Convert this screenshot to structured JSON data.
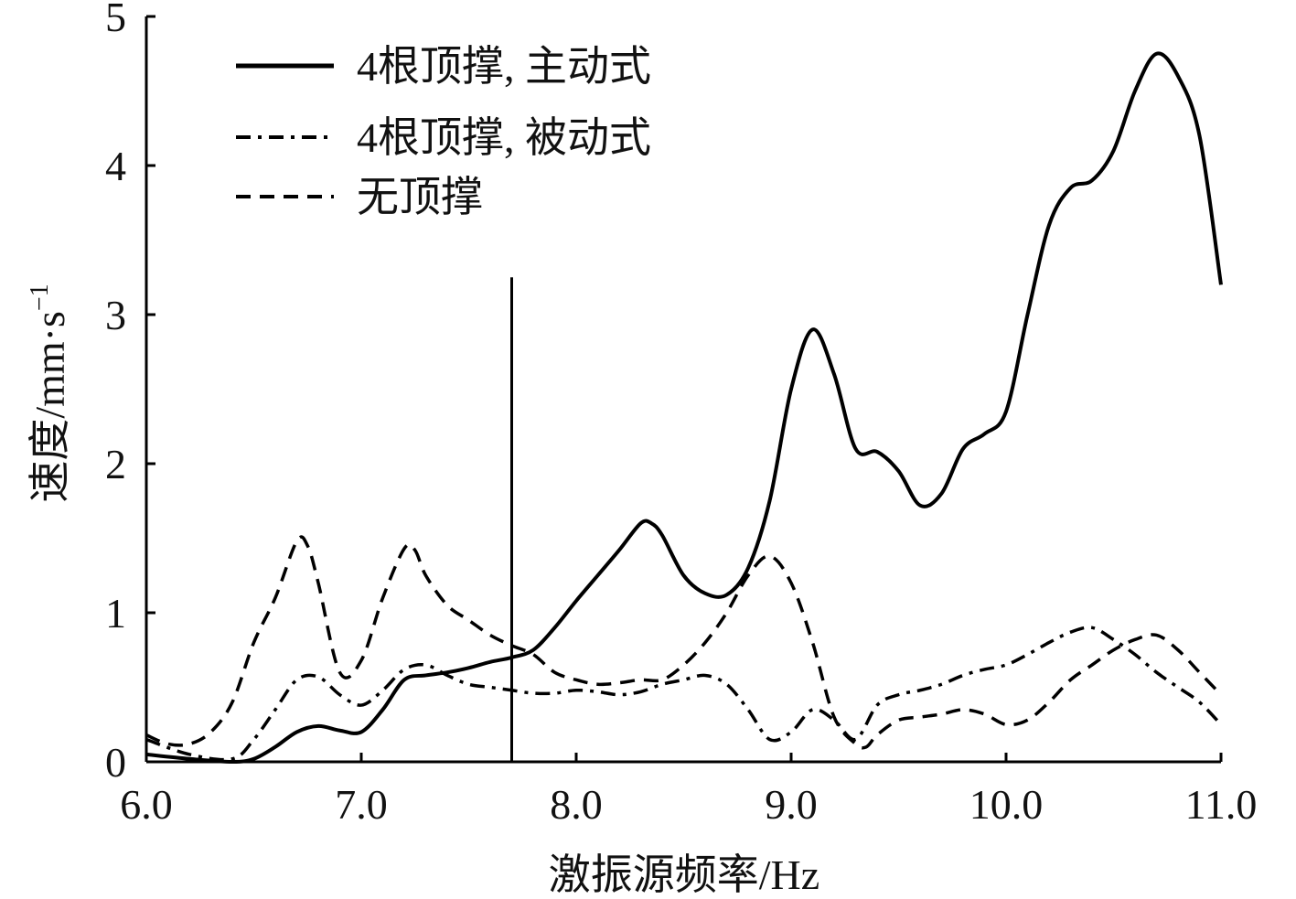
{
  "chart_data": {
    "type": "line",
    "title": "",
    "xlabel": "激振源频率/Hz",
    "ylabel": "速度/mm·s",
    "ylabel_superscript": "−1",
    "xlim": [
      6.0,
      11.0
    ],
    "ylim": [
      0,
      5
    ],
    "xticks": [
      "6.0",
      "7.0",
      "8.0",
      "9.0",
      "10.0",
      "11.0"
    ],
    "yticks": [
      "0",
      "1",
      "2",
      "3",
      "4",
      "5"
    ],
    "grid": false,
    "legend_position": "top-left",
    "marker_line": {
      "x": 7.7,
      "y_top": 3.25
    },
    "series": [
      {
        "name": "4根顶撑, 主动式",
        "style": "solid",
        "x": [
          6.0,
          6.2,
          6.4,
          6.5,
          6.6,
          6.7,
          6.8,
          6.9,
          7.0,
          7.1,
          7.2,
          7.3,
          7.4,
          7.5,
          7.6,
          7.7,
          7.8,
          7.9,
          8.0,
          8.1,
          8.2,
          8.3,
          8.35,
          8.4,
          8.5,
          8.6,
          8.7,
          8.8,
          8.9,
          9.0,
          9.1,
          9.2,
          9.3,
          9.4,
          9.5,
          9.6,
          9.7,
          9.8,
          9.9,
          10.0,
          10.1,
          10.2,
          10.3,
          10.4,
          10.5,
          10.6,
          10.7,
          10.8,
          10.9,
          11.0
        ],
        "y": [
          0.05,
          0.02,
          0.0,
          0.02,
          0.1,
          0.2,
          0.24,
          0.21,
          0.2,
          0.35,
          0.55,
          0.58,
          0.6,
          0.63,
          0.67,
          0.7,
          0.75,
          0.9,
          1.08,
          1.25,
          1.42,
          1.6,
          1.6,
          1.52,
          1.25,
          1.13,
          1.12,
          1.3,
          1.75,
          2.5,
          2.9,
          2.6,
          2.1,
          2.08,
          1.95,
          1.72,
          1.8,
          2.1,
          2.2,
          2.35,
          3.0,
          3.6,
          3.85,
          3.9,
          4.1,
          4.5,
          4.75,
          4.6,
          4.2,
          3.2
        ]
      },
      {
        "name": "4根顶撑, 被动式",
        "style": "dashdot",
        "x": [
          6.0,
          6.2,
          6.4,
          6.5,
          6.6,
          6.7,
          6.8,
          6.9,
          7.0,
          7.1,
          7.2,
          7.3,
          7.4,
          7.5,
          7.6,
          7.7,
          7.8,
          7.9,
          8.0,
          8.1,
          8.2,
          8.3,
          8.4,
          8.5,
          8.6,
          8.7,
          8.8,
          8.9,
          9.0,
          9.1,
          9.2,
          9.3,
          9.4,
          9.5,
          9.6,
          9.7,
          9.8,
          9.9,
          10.0,
          10.1,
          10.2,
          10.3,
          10.4,
          10.5,
          10.6,
          10.7,
          10.8,
          10.9,
          11.0
        ],
        "y": [
          0.15,
          0.05,
          0.02,
          0.15,
          0.35,
          0.55,
          0.57,
          0.45,
          0.38,
          0.48,
          0.62,
          0.65,
          0.58,
          0.52,
          0.5,
          0.48,
          0.46,
          0.46,
          0.48,
          0.47,
          0.45,
          0.47,
          0.52,
          0.55,
          0.58,
          0.52,
          0.35,
          0.15,
          0.2,
          0.35,
          0.28,
          0.15,
          0.38,
          0.45,
          0.48,
          0.52,
          0.58,
          0.62,
          0.65,
          0.72,
          0.8,
          0.87,
          0.9,
          0.82,
          0.72,
          0.6,
          0.5,
          0.4,
          0.25
        ]
      },
      {
        "name": "无顶撑",
        "style": "dashed",
        "x": [
          6.0,
          6.1,
          6.2,
          6.3,
          6.4,
          6.5,
          6.6,
          6.7,
          6.75,
          6.8,
          6.9,
          7.0,
          7.1,
          7.2,
          7.25,
          7.3,
          7.4,
          7.5,
          7.6,
          7.7,
          7.8,
          7.9,
          8.0,
          8.1,
          8.2,
          8.3,
          8.4,
          8.5,
          8.6,
          8.7,
          8.8,
          8.9,
          9.0,
          9.1,
          9.2,
          9.3,
          9.35,
          9.4,
          9.5,
          9.6,
          9.7,
          9.8,
          9.9,
          10.0,
          10.1,
          10.2,
          10.3,
          10.4,
          10.5,
          10.6,
          10.7,
          10.8,
          10.9,
          11.0
        ],
        "y": [
          0.18,
          0.12,
          0.12,
          0.2,
          0.4,
          0.8,
          1.1,
          1.48,
          1.45,
          1.2,
          0.6,
          0.68,
          1.1,
          1.43,
          1.42,
          1.25,
          1.05,
          0.95,
          0.85,
          0.78,
          0.72,
          0.6,
          0.55,
          0.52,
          0.53,
          0.55,
          0.55,
          0.65,
          0.8,
          1.0,
          1.25,
          1.38,
          1.2,
          0.8,
          0.3,
          0.12,
          0.1,
          0.18,
          0.28,
          0.3,
          0.32,
          0.35,
          0.32,
          0.25,
          0.28,
          0.4,
          0.55,
          0.65,
          0.75,
          0.82,
          0.85,
          0.75,
          0.6,
          0.45
        ]
      }
    ]
  }
}
